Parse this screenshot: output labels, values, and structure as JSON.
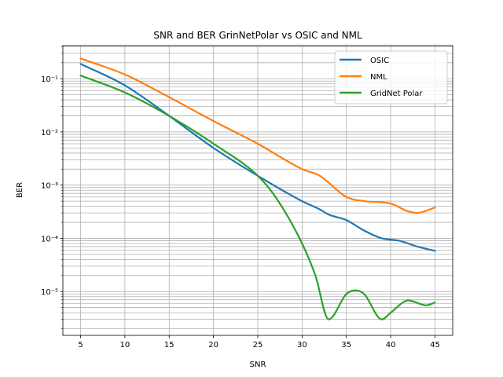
{
  "chart_data": {
    "type": "line",
    "title": "SNR and BER GrinNetPolar vs OSIC and NML",
    "xlabel": "SNR",
    "ylabel": "BER",
    "xlim": [
      3,
      47
    ],
    "ylim": [
      1.5e-06,
      0.42
    ],
    "yscale": "log",
    "xticks": [
      5,
      10,
      15,
      20,
      25,
      30,
      35,
      40,
      45
    ],
    "yticks": [
      {
        "value": 1e-05,
        "label": "10⁻⁵"
      },
      {
        "value": 0.0001,
        "label": "10⁻⁴"
      },
      {
        "value": 0.001,
        "label": "10⁻³"
      },
      {
        "value": 0.01,
        "label": "10⁻²"
      },
      {
        "value": 0.1,
        "label": "10⁻¹"
      }
    ],
    "grid": true,
    "legend_position": "top-right",
    "series": [
      {
        "name": "OSIC",
        "color": "#1f77b4",
        "x": [
          5,
          10,
          15,
          20,
          25,
          30,
          32,
          33,
          35,
          37,
          39,
          41,
          43,
          45
        ],
        "y": [
          0.19,
          0.075,
          0.02,
          0.005,
          0.0015,
          0.0005,
          0.00035,
          0.00028,
          0.00022,
          0.00014,
          0.0001,
          9e-05,
          7e-05,
          5.8e-05
        ]
      },
      {
        "name": "NML",
        "color": "#ff7f0e",
        "x": [
          5,
          10,
          15,
          20,
          25,
          30,
          32,
          35,
          37,
          40,
          42,
          43,
          45
        ],
        "y": [
          0.24,
          0.12,
          0.045,
          0.016,
          0.006,
          0.002,
          0.0015,
          0.0006,
          0.0005,
          0.00045,
          0.00032,
          0.0003,
          0.00038
        ]
      },
      {
        "name": "GridNet Polar",
        "color": "#2ca02c",
        "x": [
          5,
          10,
          15,
          20,
          25,
          27,
          30,
          31.5,
          33,
          35,
          36,
          37,
          39,
          40,
          42,
          44,
          45
        ],
        "y": [
          0.115,
          0.055,
          0.02,
          0.006,
          0.0015,
          0.0006,
          8e-05,
          2e-05,
          3e-06,
          9e-06,
          1.05e-05,
          9e-06,
          3e-06,
          4e-06,
          6.8e-06,
          5.5e-06,
          6.2e-06
        ]
      }
    ]
  }
}
